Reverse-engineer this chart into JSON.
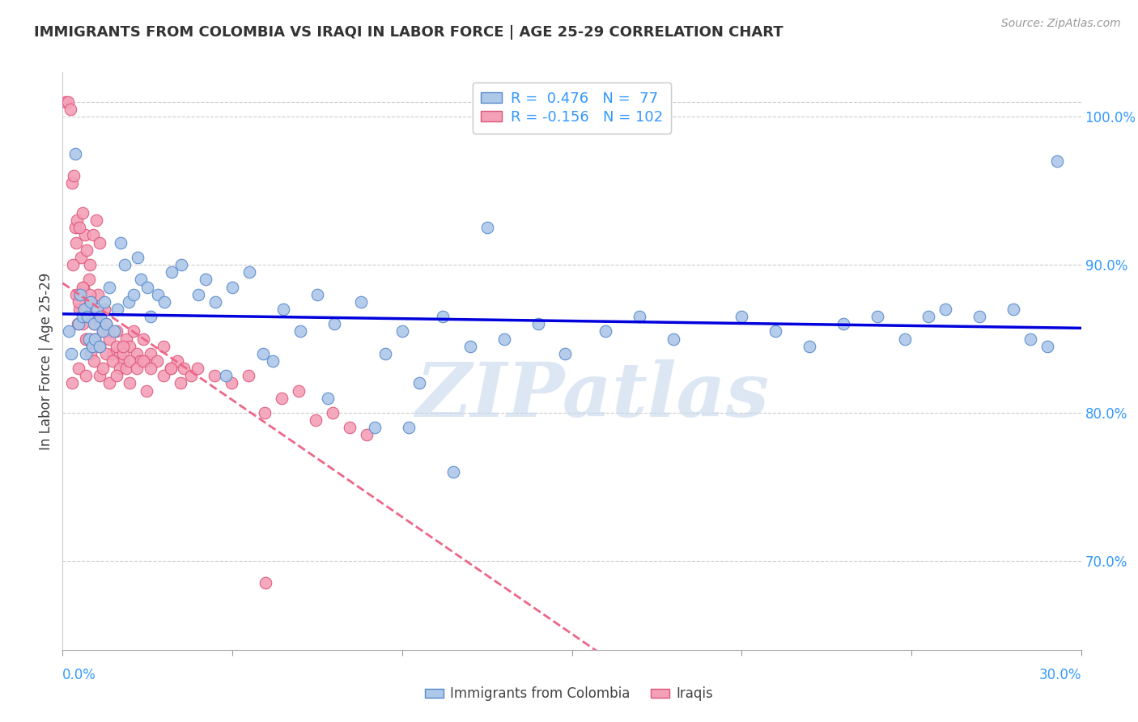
{
  "title": "IMMIGRANTS FROM COLOMBIA VS IRAQI IN LABOR FORCE | AGE 25-29 CORRELATION CHART",
  "source": "Source: ZipAtlas.com",
  "ylabel": "In Labor Force | Age 25-29",
  "xlim": [
    0.0,
    30.0
  ],
  "ylim": [
    64.0,
    103.0
  ],
  "yticks": [
    70.0,
    80.0,
    90.0,
    100.0
  ],
  "colombia_color": "#adc8e8",
  "iraq_color": "#f4a0b8",
  "colombia_edge": "#5588cc",
  "iraq_edge": "#dd5577",
  "trendline_colombia_color": "#0000dd",
  "trendline_iraq_color": "#ee6688",
  "legend_colombia_label": "R =  0.476   N =  77",
  "legend_iraq_label": "R = -0.156   N = 102",
  "watermark": "ZIPatlas",
  "watermark_color": "#c5d8ec",
  "colombia_x": [
    0.18,
    0.25,
    0.38,
    0.48,
    0.52,
    0.58,
    0.63,
    0.68,
    0.72,
    0.78,
    0.82,
    0.88,
    0.92,
    0.95,
    1.02,
    1.08,
    1.12,
    1.18,
    1.22,
    1.28,
    1.38,
    1.52,
    1.62,
    1.72,
    1.82,
    1.95,
    2.1,
    2.2,
    2.3,
    2.5,
    2.6,
    2.8,
    3.0,
    3.2,
    3.5,
    4.0,
    4.2,
    4.5,
    5.0,
    5.5,
    5.9,
    6.5,
    7.0,
    7.5,
    8.0,
    8.8,
    9.5,
    10.0,
    10.5,
    11.2,
    12.0,
    13.0,
    14.0,
    14.8,
    16.0,
    17.0,
    18.0,
    20.0,
    21.0,
    22.0,
    23.0,
    24.0,
    24.8,
    25.5,
    26.0,
    27.0,
    28.0,
    28.5,
    29.0,
    29.3,
    10.2,
    11.5,
    4.8,
    6.2,
    7.8,
    9.2,
    12.5
  ],
  "colombia_y": [
    85.5,
    84.0,
    97.5,
    86.0,
    88.0,
    86.5,
    87.0,
    84.0,
    86.5,
    85.0,
    87.5,
    84.5,
    86.0,
    85.0,
    87.0,
    84.5,
    86.5,
    85.5,
    87.5,
    86.0,
    88.5,
    85.5,
    87.0,
    91.5,
    90.0,
    87.5,
    88.0,
    90.5,
    89.0,
    88.5,
    86.5,
    88.0,
    87.5,
    89.5,
    90.0,
    88.0,
    89.0,
    87.5,
    88.5,
    89.5,
    84.0,
    87.0,
    85.5,
    88.0,
    86.0,
    87.5,
    84.0,
    85.5,
    82.0,
    86.5,
    84.5,
    85.0,
    86.0,
    84.0,
    85.5,
    86.5,
    85.0,
    86.5,
    85.5,
    84.5,
    86.0,
    86.5,
    85.0,
    86.5,
    87.0,
    86.5,
    87.0,
    85.0,
    84.5,
    97.0,
    79.0,
    76.0,
    82.5,
    83.5,
    81.0,
    79.0,
    92.5
  ],
  "iraq_x": [
    0.08,
    0.15,
    0.22,
    0.28,
    0.32,
    0.38,
    0.42,
    0.45,
    0.5,
    0.54,
    0.58,
    0.62,
    0.67,
    0.7,
    0.73,
    0.77,
    0.8,
    0.85,
    0.88,
    0.92,
    0.95,
    1.0,
    1.04,
    1.08,
    1.12,
    1.18,
    1.23,
    1.28,
    1.38,
    1.48,
    1.58,
    1.68,
    1.78,
    1.88,
    1.98,
    2.08,
    2.18,
    2.28,
    2.38,
    2.48,
    2.58,
    2.78,
    2.98,
    3.18,
    3.38,
    3.58,
    3.78,
    3.98,
    4.48,
    4.98,
    5.48,
    5.95,
    6.45,
    6.95,
    7.45,
    7.95,
    8.45,
    8.95,
    0.3,
    0.4,
    0.5,
    0.6,
    0.7,
    0.8,
    0.9,
    1.0,
    1.1,
    0.4,
    0.5,
    0.6,
    0.7,
    0.8,
    1.28,
    1.38,
    1.48,
    1.58,
    1.68,
    1.78,
    1.88,
    1.98,
    2.18,
    2.38,
    2.58,
    2.98,
    0.28,
    0.48,
    0.68,
    0.82,
    0.92,
    1.08,
    1.18,
    1.38,
    1.58,
    1.98,
    2.48,
    3.48,
    0.48,
    0.58,
    0.68,
    1.78,
    3.18,
    5.98
  ],
  "iraq_y": [
    101.0,
    101.0,
    100.5,
    95.5,
    96.0,
    92.5,
    93.0,
    86.0,
    88.0,
    90.5,
    87.0,
    88.5,
    92.0,
    85.0,
    86.5,
    89.0,
    85.0,
    87.5,
    84.5,
    86.0,
    85.0,
    86.5,
    88.0,
    84.5,
    86.0,
    85.5,
    87.0,
    86.0,
    85.5,
    84.0,
    85.5,
    84.0,
    83.5,
    85.0,
    84.5,
    85.5,
    84.0,
    83.5,
    85.0,
    83.5,
    84.0,
    83.5,
    84.5,
    83.0,
    83.5,
    83.0,
    82.5,
    83.0,
    82.5,
    82.0,
    82.5,
    80.0,
    81.0,
    81.5,
    79.5,
    80.0,
    79.0,
    78.5,
    90.0,
    91.5,
    92.5,
    93.5,
    91.0,
    90.0,
    92.0,
    93.0,
    91.5,
    88.0,
    87.0,
    88.5,
    87.0,
    88.0,
    84.0,
    85.0,
    83.5,
    84.5,
    83.0,
    84.0,
    83.0,
    83.5,
    83.0,
    83.5,
    83.0,
    82.5,
    82.0,
    83.0,
    82.5,
    84.0,
    83.5,
    82.5,
    83.0,
    82.0,
    82.5,
    82.0,
    81.5,
    82.0,
    87.5,
    86.0,
    85.0,
    84.5,
    83.0,
    68.5
  ]
}
